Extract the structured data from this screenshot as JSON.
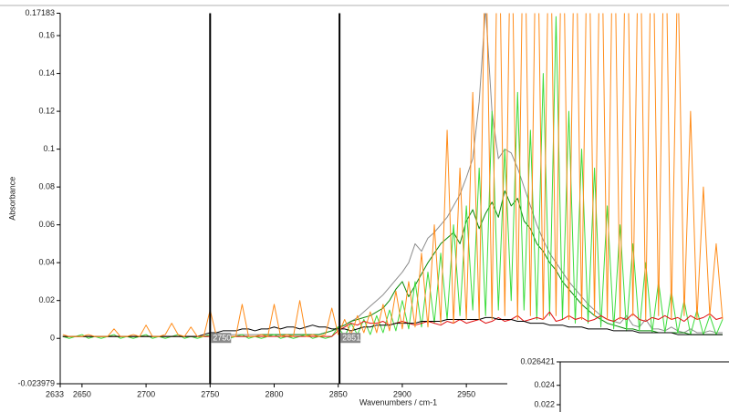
{
  "chart_data": [
    {
      "type": "line",
      "ylabel": "Absorbance",
      "xlabel": "Wavenumbers / cm-1",
      "xlim": [
        2633,
        3155
      ],
      "ylim": [
        -0.023979,
        0.17183
      ],
      "xticks": [
        2633,
        2650,
        2700,
        2750,
        2800,
        2850,
        2900,
        2950
      ],
      "yticks": [
        -0.023979,
        0,
        0.02,
        0.04,
        0.06,
        0.08,
        0.1,
        0.12,
        0.14,
        0.16,
        0.17183
      ],
      "cursors": [
        2750,
        2851
      ],
      "x": [
        2635,
        2640,
        2645,
        2650,
        2655,
        2660,
        2665,
        2670,
        2675,
        2680,
        2685,
        2690,
        2695,
        2700,
        2705,
        2710,
        2715,
        2720,
        2725,
        2730,
        2735,
        2740,
        2745,
        2750,
        2755,
        2760,
        2765,
        2770,
        2775,
        2780,
        2785,
        2790,
        2795,
        2800,
        2805,
        2810,
        2815,
        2820,
        2825,
        2830,
        2835,
        2840,
        2845,
        2850,
        2855,
        2860,
        2865,
        2870,
        2875,
        2880,
        2885,
        2890,
        2895,
        2900,
        2905,
        2910,
        2915,
        2920,
        2925,
        2930,
        2935,
        2940,
        2945,
        2950,
        2955,
        2960,
        2965,
        2970,
        2975,
        2980,
        2985,
        2990,
        2995,
        3000,
        3005,
        3010,
        3015,
        3020,
        3025,
        3030,
        3035,
        3040,
        3045,
        3050,
        3055,
        3060,
        3065,
        3070,
        3075,
        3080,
        3085,
        3090,
        3095,
        3100,
        3105,
        3110,
        3115,
        3120,
        3125,
        3130,
        3135,
        3140,
        3145,
        3150
      ],
      "series": [
        {
          "color": "#8c8c8c",
          "values": [
            0.001,
            0.001,
            0.001,
            0.001,
            0.001,
            0.001,
            0.001,
            0.001,
            0.001,
            0.001,
            0.001,
            0.001,
            0.001,
            0.001,
            0.001,
            0.001,
            0.001,
            0.001,
            0.001,
            0.001,
            0.001,
            0.001,
            0.001,
            0.002,
            0.002,
            0.002,
            0.002,
            0.002,
            0.002,
            0.002,
            0.002,
            0.002,
            0.002,
            0.002,
            0.002,
            0.002,
            0.002,
            0.002,
            0.002,
            0.002,
            0.002,
            0.003,
            0.004,
            0.005,
            0.007,
            0.009,
            0.011,
            0.014,
            0.017,
            0.02,
            0.023,
            0.027,
            0.031,
            0.035,
            0.04,
            0.05,
            0.046,
            0.053,
            0.056,
            0.06,
            0.064,
            0.07,
            0.076,
            0.085,
            0.095,
            0.125,
            0.175,
            0.12,
            0.095,
            0.1,
            0.098,
            0.09,
            0.08,
            0.07,
            0.06,
            0.052,
            0.045,
            0.04,
            0.035,
            0.03,
            0.026,
            0.022,
            0.018,
            0.015,
            0.012,
            0.01,
            0.009,
            0.008,
            0.012,
            0.007,
            0.006,
            0.01,
            0.005,
            0.005,
            0.004,
            0.006,
            0.004,
            0.003,
            0.005,
            0.003,
            0.003,
            0.004,
            0.003,
            0.003
          ]
        },
        {
          "color": "#0a8a0a",
          "values": [
            0.001,
            0.001,
            0.001,
            0.001,
            0.001,
            0.001,
            0.001,
            0.001,
            0.001,
            0.001,
            0.001,
            0.001,
            0.001,
            0.001,
            0.001,
            0.001,
            0.001,
            0.001,
            0.001,
            0.001,
            0.001,
            0.001,
            0.001,
            0.001,
            0.001,
            0.001,
            0.001,
            0.001,
            0.001,
            0.001,
            0.001,
            0.002,
            0.002,
            0.002,
            0.002,
            0.002,
            0.002,
            0.002,
            0.002,
            0.002,
            0.002,
            0.003,
            0.004,
            0.006,
            0.007,
            0.009,
            0.01,
            0.011,
            0.012,
            0.014,
            0.016,
            0.02,
            0.026,
            0.03,
            0.022,
            0.028,
            0.034,
            0.04,
            0.045,
            0.05,
            0.053,
            0.056,
            0.05,
            0.062,
            0.068,
            0.058,
            0.066,
            0.072,
            0.064,
            0.078,
            0.07,
            0.074,
            0.062,
            0.058,
            0.05,
            0.046,
            0.04,
            0.036,
            0.03,
            0.026,
            0.022,
            0.018,
            0.015,
            0.012,
            0.01,
            0.008,
            0.007,
            0.006,
            0.005,
            0.005,
            0.004,
            0.004,
            0.004,
            0.003,
            0.003,
            0.003,
            0.003,
            0.003,
            0.002,
            0.002,
            0.002,
            0.002,
            0.002,
            0.002
          ]
        },
        {
          "color": "#3ddc3d",
          "values": [
            0.001,
            0,
            0.001,
            0.002,
            0,
            0.001,
            0,
            0.001,
            0.002,
            0,
            0.001,
            0,
            0.001,
            0.002,
            0,
            0.001,
            0,
            0.001,
            0.002,
            0,
            0.001,
            0,
            0.001,
            0.002,
            0,
            0.001,
            0,
            0.001,
            0.002,
            0,
            0.001,
            0,
            0.001,
            0.002,
            0,
            0.001,
            0,
            0.001,
            0.002,
            0,
            0.001,
            0,
            0.001,
            0.006,
            0.001,
            0.008,
            0.002,
            0.01,
            0.002,
            0.012,
            0.003,
            0.015,
            0.004,
            0.02,
            0.005,
            0.03,
            0.006,
            0.035,
            0.008,
            0.045,
            0.01,
            0.06,
            0.012,
            0.07,
            0.015,
            0.09,
            0.012,
            0.12,
            0.015,
            0.1,
            0.02,
            0.13,
            0.015,
            0.11,
            0.01,
            0.14,
            0.012,
            0.17,
            0.01,
            0.12,
            0.008,
            0.1,
            0.008,
            0.09,
            0.006,
            0.07,
            0.005,
            0.06,
            0.004,
            0.05,
            0.004,
            0.04,
            0.003,
            0.03,
            0.003,
            0.025,
            0.003,
            0.02,
            0.002,
            0.015,
            0.002,
            0.012,
            0.002,
            0.01
          ]
        },
        {
          "color": "#e01010",
          "values": [
            0.001,
            0.001,
            0.001,
            0.001,
            0.001,
            0.001,
            0.001,
            0.001,
            0.001,
            0.001,
            0.001,
            0.001,
            0.001,
            0.001,
            0.001,
            0.001,
            0.001,
            0.001,
            0.001,
            0.001,
            0.001,
            0.001,
            0.001,
            0.001,
            0.001,
            0.001,
            0.001,
            0.001,
            0.001,
            0.001,
            0.001,
            0.001,
            0.001,
            0.001,
            0.001,
            0.001,
            0.001,
            0.001,
            0.001,
            0.001,
            0.001,
            0.001,
            0.001,
            0.004,
            0.006,
            0.008,
            0.007,
            0.009,
            0.008,
            0.008,
            0.009,
            0.007,
            0.008,
            0.009,
            0.008,
            0.007,
            0.008,
            0.009,
            0.008,
            0.007,
            0.009,
            0.008,
            0.01,
            0.008,
            0.009,
            0.01,
            0.008,
            0.009,
            0.011,
            0.009,
            0.01,
            0.012,
            0.009,
            0.01,
            0.011,
            0.01,
            0.014,
            0.009,
            0.01,
            0.012,
            0.01,
            0.011,
            0.009,
            0.01,
            0.012,
            0.01,
            0.009,
            0.011,
            0.01,
            0.013,
            0.01,
            0.009,
            0.011,
            0.01,
            0.012,
            0.01,
            0.011,
            0.009,
            0.012,
            0.01,
            0.011,
            0.013,
            0.01,
            0.011
          ]
        },
        {
          "color": "#000000",
          "values": [
            0.001,
            0.001,
            0.001,
            0.001,
            0.001,
            0.001,
            0.001,
            0.001,
            0.001,
            0.001,
            0.001,
            0.001,
            0.001,
            0.001,
            0.001,
            0.001,
            0.001,
            0.001,
            0.001,
            0.001,
            0.001,
            0.001,
            0.002,
            0.003,
            0.003,
            0.004,
            0.004,
            0.004,
            0.005,
            0.005,
            0.004,
            0.005,
            0.005,
            0.006,
            0.005,
            0.006,
            0.006,
            0.005,
            0.006,
            0.007,
            0.006,
            0.006,
            0.005,
            0.005,
            0.005,
            0.004,
            0.005,
            0.006,
            0.006,
            0.007,
            0.007,
            0.007,
            0.008,
            0.008,
            0.008,
            0.008,
            0.009,
            0.009,
            0.009,
            0.009,
            0.01,
            0.01,
            0.01,
            0.01,
            0.01,
            0.01,
            0.011,
            0.011,
            0.01,
            0.01,
            0.01,
            0.009,
            0.009,
            0.008,
            0.008,
            0.008,
            0.007,
            0.007,
            0.007,
            0.006,
            0.006,
            0.006,
            0.005,
            0.005,
            0.005,
            0.005,
            0.004,
            0.004,
            0.004,
            0.004,
            0.003,
            0.003,
            0.003,
            0.003,
            0.003,
            0.003,
            0.002,
            0.002,
            0.002,
            0.002,
            0.002,
            0.002,
            0.002,
            0.002
          ]
        },
        {
          "color": "#ff8c1a",
          "values": [
            0.002,
            0.001,
            0.001,
            0.001,
            0.002,
            0.001,
            0.001,
            0.001,
            0.005,
            0.001,
            0.001,
            0.002,
            0.001,
            0.007,
            0.001,
            0.001,
            0.002,
            0.008,
            0.002,
            0.001,
            0.006,
            0.001,
            0.001,
            0.015,
            0.001,
            0.002,
            0.001,
            0.001,
            0.018,
            0.001,
            0.001,
            0.002,
            0.001,
            0.018,
            0.001,
            0.002,
            0.001,
            0.02,
            0.001,
            0.002,
            0.001,
            0.002,
            0.016,
            0.002,
            0.01,
            0.002,
            0.012,
            0.003,
            0.014,
            0.003,
            0.018,
            0.004,
            0.025,
            0.005,
            0.03,
            0.006,
            0.045,
            0.006,
            0.06,
            0.008,
            0.11,
            0.008,
            0.09,
            0.01,
            0.13,
            0.01,
            0.22,
            0.01,
            0.25,
            0.012,
            0.24,
            0.01,
            0.25,
            0.012,
            0.25,
            0.01,
            0.25,
            0.012,
            0.25,
            0.01,
            0.25,
            0.01,
            0.25,
            0.012,
            0.25,
            0.01,
            0.25,
            0.01,
            0.25,
            0.012,
            0.25,
            0.01,
            0.25,
            0.012,
            0.25,
            0.01,
            0.2,
            0.012,
            0.12,
            0.01,
            0.08,
            0.012,
            0.05,
            0.01
          ]
        }
      ]
    },
    {
      "type": "line",
      "ylim": [
        0.0212,
        0.026421
      ],
      "yticks": [
        0.026421,
        0.024,
        0.022
      ]
    }
  ]
}
